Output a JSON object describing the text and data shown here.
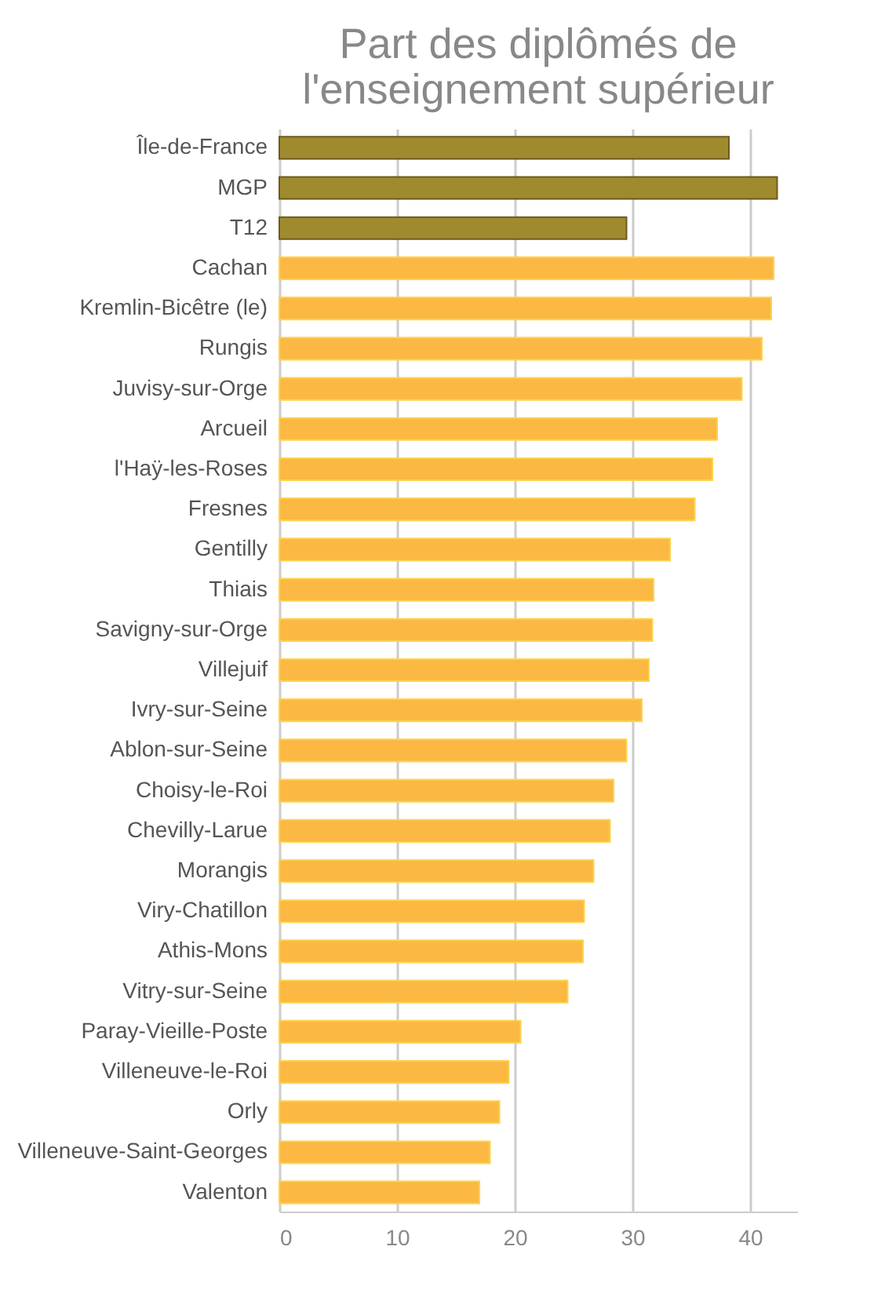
{
  "chart_data": {
    "type": "bar",
    "orientation": "horizontal",
    "title": [
      "Part des diplômés de",
      "l'enseignement supérieur"
    ],
    "categories": [
      "Île-de-France",
      "MGP",
      "T12",
      "Cachan",
      "Kremlin-Bicêtre (le)",
      "Rungis",
      "Juvisy-sur-Orge",
      "Arcueil",
      "l'Haÿ-les-Roses",
      "Fresnes",
      "Gentilly",
      "Thiais",
      "Savigny-sur-Orge",
      "Villejuif",
      "Ivry-sur-Seine",
      "Ablon-sur-Seine",
      "Choisy-le-Roi",
      "Chevilly-Larue",
      "Morangis",
      "Viry-Chatillon",
      "Athis-Mons",
      "Vitry-sur-Seine",
      "Paray-Vieille-Poste",
      "Villeneuve-le-Roi",
      "Orly",
      "Villeneuve-Saint-Georges",
      "Valenton"
    ],
    "values": [
      38.2,
      42.3,
      29.5,
      42.0,
      41.8,
      41.0,
      39.3,
      37.2,
      36.8,
      35.3,
      33.2,
      31.8,
      31.7,
      31.4,
      30.8,
      29.5,
      28.4,
      28.1,
      26.7,
      25.9,
      25.8,
      24.5,
      20.5,
      19.5,
      18.7,
      17.9,
      17.0
    ],
    "colors": [
      "#a08a2e",
      "#a08a2e",
      "#a08a2e",
      "#fbb843",
      "#fbb843",
      "#fbb843",
      "#fbb843",
      "#fbb843",
      "#fbb843",
      "#fbb843",
      "#fbb843",
      "#fbb843",
      "#fbb843",
      "#fbb843",
      "#fbb843",
      "#fbb843",
      "#fbb843",
      "#fbb843",
      "#fbb843",
      "#fbb843",
      "#fbb843",
      "#fbb843",
      "#fbb843",
      "#fbb843",
      "#fbb843",
      "#fbb843",
      "#fbb843"
    ],
    "xlim": [
      0,
      44
    ],
    "xticks": [
      0,
      10,
      20,
      30,
      40
    ],
    "grid": "x"
  }
}
